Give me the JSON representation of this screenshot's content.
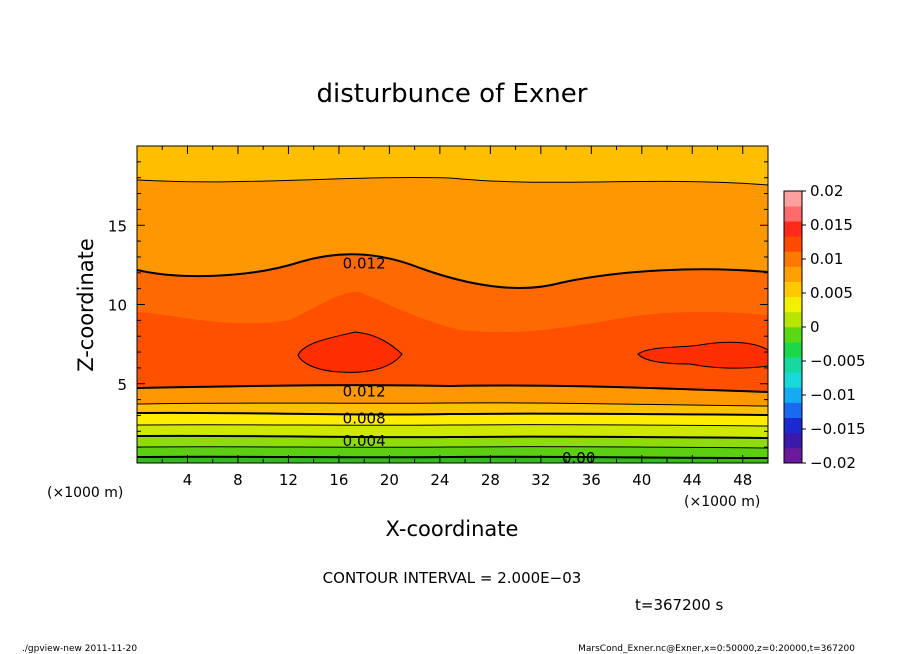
{
  "chart_data": {
    "type": "heatmap",
    "title": "disturbunce of Exner",
    "xlabel": "X-coordinate",
    "ylabel": "Z-coordinate",
    "x_unit_left": "(×1000 m)",
    "x_unit_right": "(×1000 m)",
    "xlim": [
      0,
      50
    ],
    "ylim": [
      0,
      20
    ],
    "x_ticks": [
      4,
      8,
      12,
      16,
      20,
      24,
      28,
      32,
      36,
      40,
      44,
      48
    ],
    "y_ticks": [
      5,
      10,
      15
    ],
    "colorbar": {
      "ticks": [
        "0.02",
        "0.015",
        "0.01",
        "0.005",
        "0",
        "−0.005",
        "−0.01",
        "−0.015",
        "−0.02"
      ],
      "range": [
        -0.02,
        0.02
      ]
    },
    "contour_labels": [
      {
        "text": "0.012",
        "x": 18,
        "z": 12.6
      },
      {
        "text": "0.012",
        "x": 18,
        "z": 4.5
      },
      {
        "text": "0.008",
        "x": 18,
        "z": 2.8
      },
      {
        "text": "0.004",
        "x": 18,
        "z": 1.4
      },
      {
        "text": "0.00",
        "x": 35,
        "z": 0.3
      }
    ],
    "contour_interval_text": "CONTOUR INTERVAL = 2.000E−03",
    "time_text": "t=367200 s"
  },
  "footer": {
    "left": "./gpview-new   2011-11-20",
    "right": "MarsCond_Exner.nc@Exner,x=0:50000,z=0:20000,t=367200"
  },
  "colors": {
    "bands": [
      "#30b818",
      "#44cc14",
      "#6ed810",
      "#9fe00a",
      "#d8ec00",
      "#fff000",
      "#ffcc00",
      "#ffb000",
      "#ff9c00",
      "#ff7a00",
      "#ff5e00",
      "#ff3a00"
    ]
  }
}
